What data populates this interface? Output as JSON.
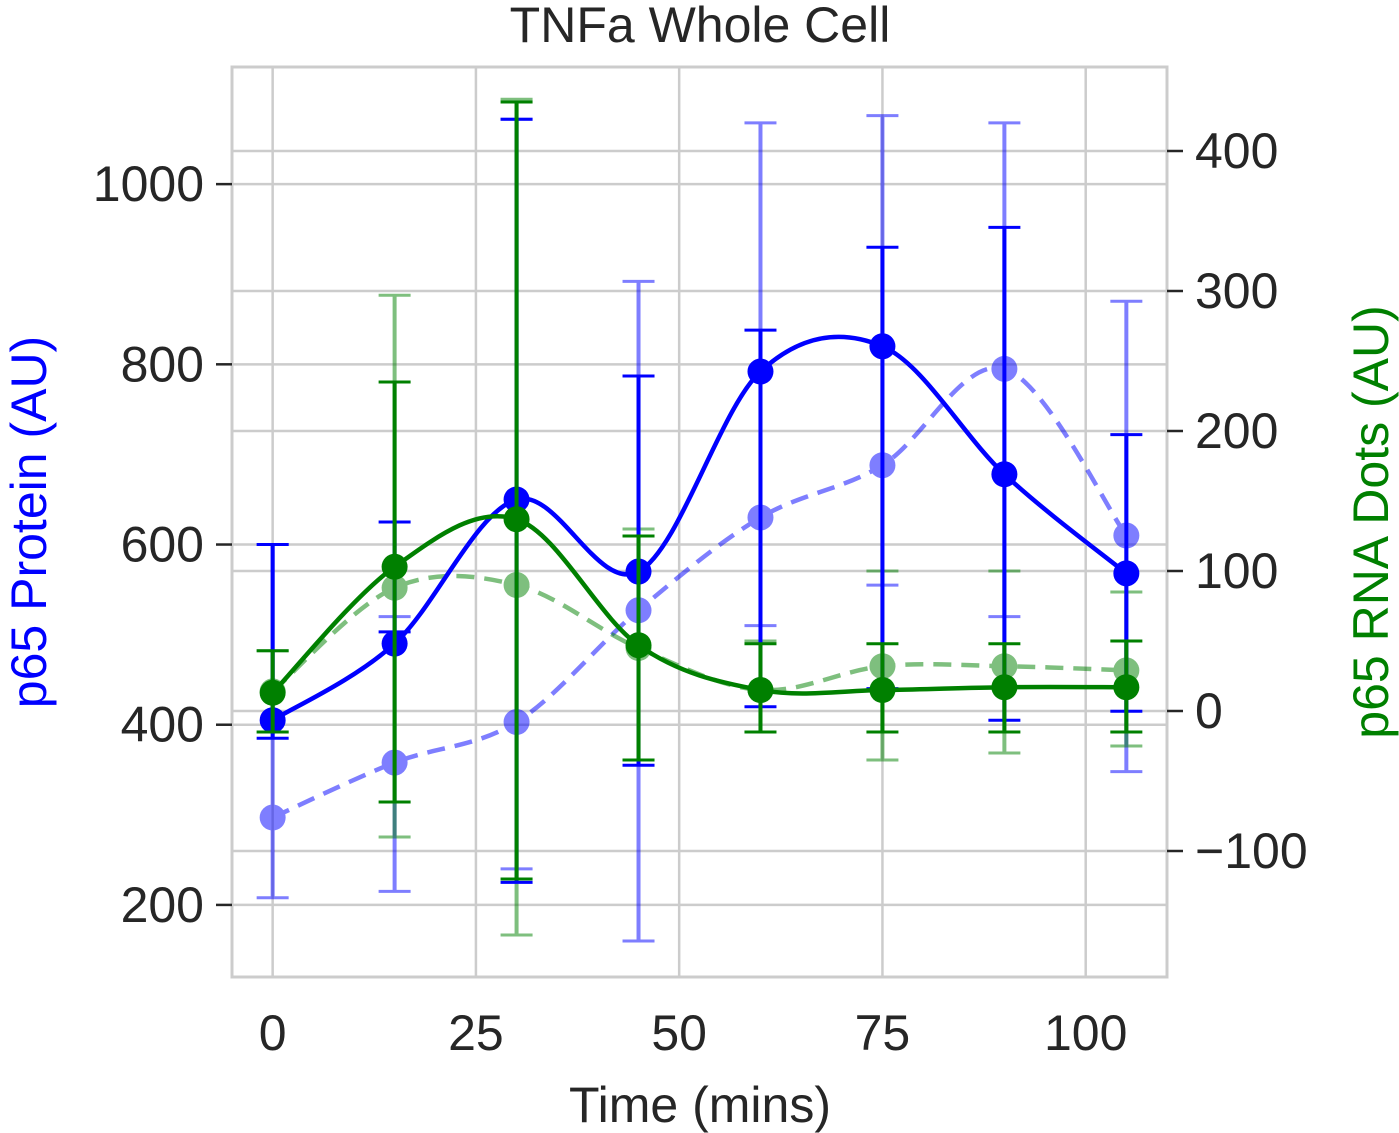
{
  "chart_data": {
    "type": "line",
    "title": "TNFa Whole Cell",
    "xlabel": "Time (mins)",
    "ylabel_left": "p65 Protein (AU)",
    "ylabel_right": "p65 RNA Dots (AU)",
    "xlim": [
      -5,
      110
    ],
    "ylim_left": [
      120,
      1130
    ],
    "ylim_right": [
      -190,
      460
    ],
    "xticks": [
      0,
      25,
      50,
      75,
      100
    ],
    "yticks_left": [
      200,
      400,
      600,
      800,
      1000
    ],
    "yticks_right": [
      -100,
      0,
      100,
      200,
      300,
      400
    ],
    "grid": true,
    "x": [
      0,
      15,
      30,
      45,
      60,
      75,
      90,
      105
    ],
    "series": [
      {
        "axis": "left",
        "color": "#0000ff",
        "style": "solid",
        "opacity": 1,
        "values": [
          405,
          490,
          650,
          570,
          792,
          820,
          678,
          568
        ],
        "err_low": [
          385,
          503,
          225,
          355,
          420,
          440,
          405,
          415
        ],
        "err_high": [
          600,
          625,
          1072,
          787,
          838,
          930,
          952,
          722
        ]
      },
      {
        "axis": "left",
        "color": "#0000ff",
        "style": "dashed",
        "opacity": 0.5,
        "values": [
          297,
          358,
          403,
          527,
          630,
          688,
          795,
          610
        ],
        "err_low": [
          208,
          215,
          240,
          160,
          510,
          555,
          520,
          348
        ],
        "err_high": [
          600,
          520,
          1072,
          892,
          1068,
          1076,
          1068,
          870
        ]
      },
      {
        "axis": "right",
        "color": "#008000",
        "style": "solid",
        "opacity": 1,
        "values": [
          13,
          103,
          137,
          47,
          15,
          15,
          17,
          17
        ],
        "err_low": [
          -15,
          -65,
          -120,
          -35,
          -15,
          -15,
          -15,
          -15
        ],
        "err_high": [
          43,
          235,
          435,
          125,
          48,
          48,
          48,
          50
        ]
      },
      {
        "axis": "right",
        "color": "#008000",
        "style": "dashed",
        "opacity": 0.5,
        "values": [
          14,
          88,
          90,
          45,
          15,
          32,
          32,
          29
        ],
        "err_low": [
          -15,
          -90,
          -160,
          -35,
          -15,
          -35,
          -30,
          -25
        ],
        "err_high": [
          43,
          297,
          437,
          130,
          50,
          100,
          100,
          85
        ]
      }
    ]
  }
}
